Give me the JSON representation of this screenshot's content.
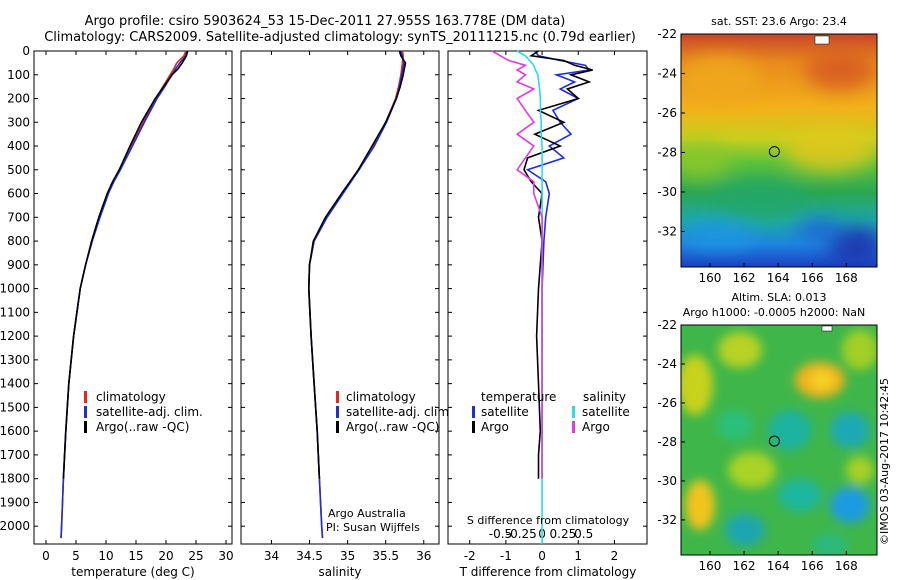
{
  "header": {
    "line1": "Argo profile: csiro 5903624_53 15-Dec-2011 27.955S 163.778E (DM data)",
    "line2": "Climatology: CARS2009. Satellite-adjusted climatology: synTS_20111215.nc (0.79d earlier)"
  },
  "side_label": "©IMOS 03-Aug-2017 10:42:45",
  "colors": {
    "climatology": "#e8261c",
    "satellite": "#1f2fd6",
    "argo": "#000000",
    "sal_satellite": "#26e0e0",
    "sal_argo": "#e03ce0"
  },
  "chart_data": [
    {
      "type": "line",
      "id": "temperature",
      "xlabel": "temperature (deg C)",
      "ylabel": "",
      "xlim": [
        -2,
        31
      ],
      "ylim": [
        2075,
        0
      ],
      "xticks": [
        0,
        5,
        10,
        15,
        20,
        25,
        30
      ],
      "yticks": [
        0,
        100,
        200,
        300,
        400,
        500,
        600,
        700,
        800,
        900,
        1000,
        1100,
        1200,
        1300,
        1400,
        1500,
        1600,
        1700,
        1800,
        1900,
        2000
      ],
      "legend": [
        "climatology",
        "satellite-adj. clim.",
        "Argo(..raw -QC)"
      ],
      "depth": [
        0,
        20,
        50,
        75,
        100,
        150,
        200,
        300,
        400,
        500,
        550,
        600,
        700,
        800,
        900,
        1000,
        1200,
        1400,
        1600,
        1800,
        2000,
        2050
      ],
      "series": [
        {
          "name": "climatology",
          "values": [
            23.3,
            23.0,
            21.8,
            21.3,
            20.7,
            19.5,
            18.3,
            16.2,
            14.2,
            12.3,
            11.2,
            10.3,
            8.9,
            7.7,
            6.6,
            5.7,
            4.6,
            3.8,
            3.3,
            2.9,
            2.6,
            2.5
          ]
        },
        {
          "name": "satellite-adj. clim.",
          "values": [
            23.5,
            23.3,
            22.3,
            21.6,
            21.0,
            19.8,
            18.5,
            16.4,
            14.4,
            12.4,
            11.3,
            10.4,
            9.0,
            7.7,
            6.6,
            5.7,
            4.6,
            3.8,
            3.3,
            2.9,
            2.6,
            2.5
          ]
        },
        {
          "name": "Argo(..raw -QC)",
          "values": [
            23.6,
            23.4,
            22.7,
            22.0,
            21.0,
            19.6,
            18.2,
            15.9,
            14.0,
            12.2,
            11.1,
            10.2,
            8.8,
            7.6,
            6.6,
            5.7,
            4.6,
            3.8,
            3.3,
            2.9,
            null,
            null
          ]
        }
      ]
    },
    {
      "type": "line",
      "id": "salinity",
      "xlabel": "salinity",
      "xlim": [
        33.6,
        36.2
      ],
      "ylim": [
        2075,
        0
      ],
      "xticks": [
        34,
        34.5,
        35,
        35.5,
        36
      ],
      "legend": [
        "climatology",
        "satellite-adj. clim.",
        "Argo(..raw -QC)"
      ],
      "annotation": [
        "Argo Australia",
        "PI: Susan Wijffels"
      ],
      "depth": [
        0,
        20,
        50,
        100,
        150,
        200,
        300,
        400,
        500,
        600,
        700,
        800,
        900,
        1000,
        1200,
        1400,
        1600,
        1800,
        2000,
        2050
      ],
      "series": [
        {
          "name": "climatology",
          "values": [
            35.72,
            35.73,
            35.72,
            35.7,
            35.67,
            35.63,
            35.5,
            35.34,
            35.14,
            34.93,
            34.72,
            34.56,
            34.5,
            34.49,
            34.52,
            34.56,
            34.6,
            34.63,
            34.66,
            34.67
          ]
        },
        {
          "name": "satellite-adj. clim.",
          "values": [
            35.7,
            35.72,
            35.74,
            35.71,
            35.68,
            35.64,
            35.51,
            35.35,
            35.15,
            34.94,
            34.73,
            34.56,
            34.5,
            34.49,
            34.52,
            34.56,
            34.6,
            34.63,
            34.66,
            34.67
          ]
        },
        {
          "name": "Argo(..raw -QC)",
          "values": [
            35.68,
            35.7,
            35.76,
            35.73,
            35.69,
            35.64,
            35.5,
            35.32,
            35.14,
            34.92,
            34.71,
            34.55,
            34.5,
            34.49,
            34.52,
            34.56,
            34.6,
            34.63,
            null,
            null
          ]
        }
      ]
    },
    {
      "type": "line",
      "id": "difference",
      "xlabel": "T difference from climatology",
      "xlabel2": "S difference from climatology",
      "xlim": [
        -2.6,
        2.9
      ],
      "ylim": [
        2075,
        0
      ],
      "xticks_T": [
        -2,
        -1,
        0,
        1,
        2
      ],
      "xticks_S": [
        -0.5,
        -0.25,
        0,
        0.25,
        0.5
      ],
      "legend_T_title": "temperature",
      "legend_S_title": "salinity",
      "legend": [
        "satellite",
        "Argo",
        "satellite",
        "Argo"
      ],
      "depth": [
        0,
        20,
        40,
        60,
        80,
        100,
        130,
        160,
        200,
        250,
        300,
        350,
        400,
        450,
        500,
        550,
        600,
        700,
        800,
        1000,
        1200,
        1400,
        1600,
        1700,
        1800
      ],
      "series": [
        {
          "name": "satellite",
          "values": [
            -0.2,
            -0.1,
            0.5,
            1.2,
            1.3,
            0.4,
            0.9,
            0.5,
            1.0,
            0.3,
            0.5,
            0.8,
            0.2,
            0.6,
            -0.4,
            0.1,
            0.2,
            0.1,
            0.05,
            0.0,
            0.0,
            0.0,
            0.0,
            0.0,
            0.0
          ]
        },
        {
          "name": "Argo",
          "values": [
            -0.1,
            -0.3,
            0.6,
            0.9,
            1.4,
            0.8,
            1.3,
            0.7,
            1.0,
            -0.1,
            0.6,
            -0.2,
            0.5,
            -0.4,
            -0.5,
            -0.3,
            0.0,
            -0.1,
            0.0,
            -0.1,
            -0.15,
            -0.1,
            -0.05,
            -0.1,
            -0.1
          ]
        },
        {
          "name": "sal satellite",
          "values": [
            -0.3,
            -0.2,
            -0.15,
            -0.1,
            -0.08,
            -0.05,
            -0.04,
            -0.03,
            -0.02,
            -0.02,
            -0.01,
            -0.01,
            0.0,
            0.0,
            0.0,
            0.0,
            0.0,
            0.0,
            0.0,
            0.0,
            0.0,
            0.0,
            0.0,
            0.0,
            0.0
          ]
        },
        {
          "name": "sal Argo",
          "values": [
            -0.6,
            -0.5,
            -0.4,
            -0.2,
            -0.3,
            -0.2,
            -0.3,
            -0.1,
            -0.3,
            -0.2,
            -0.1,
            -0.3,
            -0.1,
            -0.2,
            -0.3,
            -0.1,
            -0.1,
            0.0,
            0.0,
            0.0,
            0.0,
            0.0,
            0.0,
            0.0,
            0.0
          ]
        }
      ]
    },
    {
      "type": "heatmap",
      "id": "sst-map",
      "title": "sat. SST: 23.6  Argo: 23.4",
      "xlim": [
        158.3,
        169.8
      ],
      "ylim": [
        -33.8,
        -22
      ],
      "xticks": [
        160,
        162,
        164,
        166,
        168
      ],
      "yticks": [
        -22,
        -24,
        -26,
        -28,
        -30,
        -32
      ],
      "marker": {
        "lon": 163.778,
        "lat": -27.955
      }
    },
    {
      "type": "heatmap",
      "id": "sla-map",
      "title": "Altim. SLA: 0.013",
      "title2": "Argo h1000: -0.0005 h2000: NaN",
      "xlim": [
        158.3,
        169.8
      ],
      "ylim": [
        -33.8,
        -22
      ],
      "xticks": [
        160,
        162,
        164,
        166,
        168
      ],
      "yticks": [
        -22,
        -24,
        -26,
        -28,
        -30,
        -32
      ],
      "marker": {
        "lon": 163.778,
        "lat": -27.955
      }
    }
  ]
}
